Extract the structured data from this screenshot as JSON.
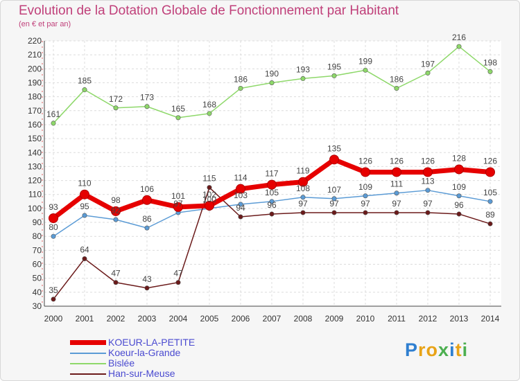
{
  "chart_data": {
    "type": "line",
    "title": "Evolution de la Dotation Globale de Fonctionnement par Habitant",
    "subtitle": "(en € et par an)",
    "x": [
      "2000",
      "2001",
      "2002",
      "2003",
      "2004",
      "2005",
      "2006",
      "2007",
      "2008",
      "2009",
      "2010",
      "2011",
      "2012",
      "2013",
      "2014"
    ],
    "ylim": [
      30,
      220
    ],
    "yticks": [
      30,
      40,
      50,
      60,
      70,
      80,
      90,
      100,
      110,
      120,
      130,
      140,
      150,
      160,
      170,
      180,
      190,
      200,
      210,
      220
    ],
    "grid": true,
    "series": [
      {
        "name": "KOEUR-LA-PETITE",
        "color": "#e60000",
        "values": [
          93,
          110,
          98,
          106,
          101,
          102,
          114,
          117,
          119,
          135,
          126,
          126,
          126,
          128,
          126
        ]
      },
      {
        "name": "Koeur-la-Grande",
        "color": "#5b9bd5",
        "values": [
          80,
          95,
          92,
          86,
          97,
          100,
          103,
          105,
          108,
          107,
          109,
          111,
          113,
          109,
          105
        ]
      },
      {
        "name": "Bislée",
        "color": "#8ed86a",
        "values": [
          161,
          185,
          172,
          173,
          165,
          168,
          186,
          190,
          193,
          195,
          199,
          186,
          197,
          216,
          198
        ]
      },
      {
        "name": "Han-sur-Meuse",
        "color": "#6b1a1a",
        "values": [
          35,
          64,
          47,
          43,
          47,
          115,
          94,
          96,
          97,
          97,
          97,
          97,
          97,
          96,
          89
        ]
      }
    ]
  },
  "logo": {
    "letters": [
      "P",
      "r",
      "o",
      "x",
      "i",
      "t",
      "i"
    ],
    "colors": [
      "#2f7fd0",
      "#e8a317",
      "#e8a317",
      "#4caf50",
      "#2f7fd0",
      "#e8a317",
      "#4caf50"
    ]
  }
}
